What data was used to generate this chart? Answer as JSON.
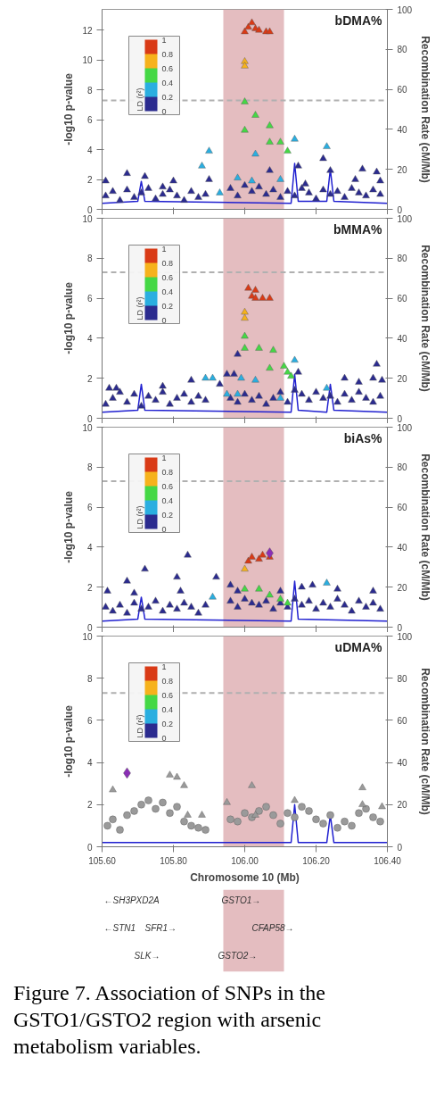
{
  "chart_data": [
    {
      "type": "scatter",
      "title": "bDMA%",
      "ylabel": "-log10 p-value",
      "y2label": "Recombination Rate (cM/Mb)",
      "clabel": "LD (r²)",
      "clim": [
        0,
        1
      ],
      "cticks": [
        0,
        0.2,
        0.4,
        0.6,
        0.8,
        1
      ],
      "xlim": [
        105.6,
        106.4
      ],
      "xticks": [
        {
          "value": 105.6,
          "label": null
        },
        {
          "value": 105.8,
          "label": null
        },
        {
          "value": 106.0,
          "label": null
        },
        {
          "value": 106.2,
          "label": null
        },
        {
          "value": 106.4,
          "label": null
        }
      ],
      "ylim": [
        0,
        13.4
      ],
      "yticks": [
        0,
        2,
        4,
        6,
        8,
        10,
        12
      ],
      "y2lim": [
        0,
        100
      ],
      "y2ticks": [
        0,
        20,
        40,
        60,
        80,
        100
      ],
      "tick_labels": "y",
      "ref_lines": [
        {
          "axis": "y",
          "value": 7.3,
          "color": "#b0b0b0",
          "line_style": "dashed"
        }
      ],
      "bands": [
        {
          "axis": "x",
          "from": 105.94,
          "to": 106.11,
          "color": "#dba7ab"
        }
      ],
      "series": [
        {
          "type": "scatter",
          "marker": "triangle",
          "color": "#2b2b8f",
          "x": [
            105.61,
            105.63,
            105.65,
            105.67,
            105.69,
            105.71,
            105.73,
            105.75,
            105.77,
            105.79,
            105.81,
            105.83,
            105.85,
            105.87,
            105.89,
            105.96,
            105.98,
            106.0,
            106.02,
            106.04,
            106.06,
            106.08,
            106.1,
            106.12,
            106.14,
            106.16,
            106.18,
            106.2,
            106.22,
            106.24,
            106.26,
            106.28,
            106.3,
            106.32,
            106.34,
            106.36,
            106.38
          ],
          "values": [
            0.9,
            1.2,
            0.6,
            1.3,
            0.8,
            1.1,
            1.4,
            0.7,
            1.0,
            1.3,
            0.9,
            0.6,
            1.2,
            0.8,
            1.0,
            1.4,
            0.9,
            1.6,
            1.2,
            1.5,
            1.0,
            1.3,
            0.8,
            1.2,
            0.9,
            1.4,
            1.1,
            0.7,
            1.3,
            1.0,
            1.2,
            0.8,
            1.4,
            1.1,
            0.9,
            1.3,
            1.0
          ]
        },
        {
          "type": "scatter",
          "marker": "triangle",
          "color": "#2b2b8f",
          "x": [
            105.61,
            105.67,
            105.72,
            105.77,
            105.8,
            105.9,
            106.15,
            106.17,
            106.22,
            106.24,
            106.31,
            106.33,
            106.37,
            106.38,
            106.07
          ],
          "values": [
            1.9,
            2.4,
            2.2,
            1.5,
            1.9,
            2.0,
            2.9,
            1.7,
            3.4,
            2.6,
            2.0,
            2.7,
            2.5,
            1.9,
            2.6
          ]
        },
        {
          "type": "scatter",
          "marker": "triangle",
          "color": "#2aaee0",
          "x": [
            106.14,
            106.23,
            105.9,
            106.03,
            105.88,
            106.1,
            106.02,
            105.98,
            105.93
          ],
          "values": [
            4.7,
            4.2,
            3.9,
            3.7,
            2.9,
            2.0,
            1.9,
            2.1,
            1.1
          ]
        },
        {
          "type": "scatter",
          "marker": "triangle",
          "color": "#45d845",
          "x": [
            106.0,
            106.03,
            106.0,
            106.07,
            106.07,
            106.1,
            106.12
          ],
          "values": [
            7.2,
            6.3,
            5.3,
            5.6,
            4.5,
            4.5,
            3.9
          ]
        },
        {
          "type": "scatter",
          "marker": "triangle",
          "color": "#f6b21c",
          "x": [
            106.0,
            106.0
          ],
          "values": [
            9.9,
            9.6
          ]
        },
        {
          "type": "scatter",
          "marker": "triangle",
          "color": "#d93a16",
          "x": [
            106.0,
            106.01,
            106.02,
            106.03,
            106.04,
            106.06,
            106.07
          ],
          "values": [
            11.9,
            12.2,
            12.5,
            12.1,
            12.0,
            11.9,
            11.9
          ]
        },
        {
          "type": "line",
          "axis": "y2",
          "color": "#2020d0",
          "x": [
            105.6,
            105.7,
            105.71,
            105.72,
            106.13,
            106.14,
            106.15,
            106.23,
            106.24,
            106.25,
            106.4
          ],
          "values": [
            3,
            4,
            14,
            4,
            3,
            23,
            4,
            4,
            20,
            4,
            3
          ]
        }
      ]
    },
    {
      "type": "scatter",
      "title": "bMMA%",
      "ylabel": "-log10 p-value",
      "y2label": "Recombination Rate (cM/Mb)",
      "clabel": "LD (r²)",
      "clim": [
        0,
        1
      ],
      "cticks": [
        0,
        0.2,
        0.4,
        0.6,
        0.8,
        1
      ],
      "xlim": [
        105.6,
        106.4
      ],
      "xticks": [
        {
          "value": 105.6,
          "label": null
        },
        {
          "value": 105.8,
          "label": null
        },
        {
          "value": 106.0,
          "label": null
        },
        {
          "value": 106.2,
          "label": null
        },
        {
          "value": 106.4,
          "label": null
        }
      ],
      "ylim": [
        0,
        10
      ],
      "yticks": [
        0,
        2,
        4,
        6,
        8,
        10
      ],
      "y2lim": [
        0,
        100
      ],
      "y2ticks": [
        0,
        20,
        40,
        60,
        80,
        100
      ],
      "tick_labels": "y",
      "ref_lines": [
        {
          "axis": "y",
          "value": 7.3,
          "color": "#b0b0b0",
          "line_style": "dashed"
        }
      ],
      "bands": [
        {
          "axis": "x",
          "from": 105.94,
          "to": 106.11,
          "color": "#dba7ab"
        }
      ],
      "series": [
        {
          "type": "scatter",
          "marker": "triangle",
          "color": "#2b2b8f",
          "x": [
            105.61,
            105.63,
            105.65,
            105.67,
            105.69,
            105.71,
            105.73,
            105.75,
            105.77,
            105.79,
            105.81,
            105.83,
            105.85,
            105.87,
            105.89,
            105.96,
            105.98,
            106.0,
            106.02,
            106.04,
            106.06,
            106.08,
            106.1,
            106.12,
            106.14,
            106.16,
            106.18,
            106.2,
            106.22,
            106.24,
            106.26,
            106.28,
            106.3,
            106.32,
            106.34,
            106.36,
            106.38
          ],
          "values": [
            0.7,
            1.0,
            1.3,
            0.8,
            1.2,
            0.6,
            1.1,
            0.9,
            1.3,
            0.7,
            1.0,
            1.2,
            0.8,
            1.1,
            0.9,
            1.0,
            0.8,
            1.2,
            0.9,
            1.1,
            0.7,
            1.0,
            1.3,
            0.8,
            1.4,
            1.2,
            0.9,
            1.3,
            1.0,
            1.1,
            0.8,
            1.2,
            0.9,
            1.3,
            1.0,
            0.8,
            1.1
          ]
        },
        {
          "type": "scatter",
          "marker": "triangle",
          "color": "#2b2b8f",
          "x": [
            105.98,
            105.95,
            105.97,
            106.37,
            106.36,
            106.385,
            105.62,
            105.64,
            105.77,
            105.85,
            106.15,
            106.28,
            106.32,
            105.93
          ],
          "values": [
            3.2,
            2.2,
            2.2,
            2.7,
            2.0,
            1.9,
            1.5,
            1.5,
            1.6,
            1.9,
            2.3,
            2.0,
            1.8,
            1.7
          ]
        },
        {
          "type": "scatter",
          "marker": "triangle",
          "color": "#2aaee0",
          "x": [
            105.89,
            105.91,
            106.14,
            105.99,
            105.95,
            105.98,
            106.03,
            106.23,
            106.1
          ],
          "values": [
            2.0,
            2.0,
            2.9,
            2.0,
            1.2,
            1.2,
            1.9,
            1.5,
            1.0
          ]
        },
        {
          "type": "scatter",
          "marker": "triangle",
          "color": "#45d845",
          "x": [
            106.0,
            106.0,
            106.04,
            106.08,
            106.07,
            106.11,
            106.12,
            106.13
          ],
          "values": [
            4.1,
            3.5,
            3.5,
            3.4,
            2.5,
            2.6,
            2.3,
            2.1
          ]
        },
        {
          "type": "scatter",
          "marker": "triangle",
          "color": "#f6b21c",
          "x": [
            106.0,
            106.0
          ],
          "values": [
            5.3,
            5.0
          ]
        },
        {
          "type": "scatter",
          "marker": "triangle",
          "color": "#d93a16",
          "x": [
            106.01,
            106.03,
            106.02,
            106.05,
            106.07,
            106.03
          ],
          "values": [
            6.5,
            6.4,
            6.1,
            6.0,
            6.0,
            6.0
          ]
        },
        {
          "type": "line",
          "axis": "y2",
          "color": "#2020d0",
          "x": [
            105.6,
            105.7,
            105.71,
            105.72,
            106.13,
            106.14,
            106.15,
            106.23,
            106.24,
            106.25,
            106.4
          ],
          "values": [
            3,
            4,
            17,
            4,
            3,
            22,
            4,
            3,
            17,
            4,
            3
          ]
        }
      ]
    },
    {
      "type": "scatter",
      "title": "biAs%",
      "ylabel": "-log10 p-value",
      "y2label": "Recombination Rate (cM/Mb)",
      "clabel": "LD (r²)",
      "clim": [
        0,
        1
      ],
      "cticks": [
        0,
        0.2,
        0.4,
        0.6,
        0.8,
        1
      ],
      "xlim": [
        105.6,
        106.4
      ],
      "xticks": [
        {
          "value": 105.6,
          "label": null
        },
        {
          "value": 105.8,
          "label": null
        },
        {
          "value": 106.0,
          "label": null
        },
        {
          "value": 106.2,
          "label": null
        },
        {
          "value": 106.4,
          "label": null
        }
      ],
      "ylim": [
        0,
        10
      ],
      "yticks": [
        0,
        2,
        4,
        6,
        8,
        10
      ],
      "y2lim": [
        0,
        100
      ],
      "y2ticks": [
        0,
        20,
        40,
        60,
        80,
        100
      ],
      "tick_labels": "y",
      "ref_lines": [
        {
          "axis": "y",
          "value": 7.3,
          "color": "#b0b0b0",
          "line_style": "dashed"
        }
      ],
      "bands": [
        {
          "axis": "x",
          "from": 105.94,
          "to": 106.11,
          "color": "#dba7ab"
        }
      ],
      "series": [
        {
          "type": "scatter",
          "marker": "triangle",
          "color": "#2b2b8f",
          "x": [
            105.61,
            105.63,
            105.65,
            105.67,
            105.69,
            105.71,
            105.73,
            105.75,
            105.77,
            105.79,
            105.81,
            105.83,
            105.85,
            105.87,
            105.89,
            105.96,
            105.98,
            106.0,
            106.02,
            106.04,
            106.06,
            106.08,
            106.1,
            106.12,
            106.14,
            106.16,
            106.18,
            106.2,
            106.22,
            106.24,
            106.26,
            106.28,
            106.3,
            106.32,
            106.34,
            106.36,
            106.38
          ],
          "values": [
            1.0,
            0.8,
            1.1,
            0.7,
            1.2,
            0.9,
            1.0,
            1.3,
            0.8,
            1.1,
            0.9,
            1.2,
            1.0,
            0.7,
            1.1,
            1.3,
            1.0,
            1.4,
            1.2,
            1.1,
            1.3,
            0.9,
            1.2,
            1.0,
            1.4,
            1.1,
            1.3,
            0.9,
            1.2,
            1.0,
            1.4,
            1.1,
            0.8,
            1.3,
            1.0,
            1.2,
            0.9
          ]
        },
        {
          "type": "scatter",
          "marker": "triangle",
          "color": "#2b2b8f",
          "x": [
            105.84,
            105.72,
            105.81,
            105.92,
            105.67,
            105.615,
            105.69,
            105.82,
            105.96,
            105.98,
            106.1,
            106.19,
            106.26,
            106.36,
            106.16
          ],
          "values": [
            3.6,
            2.9,
            2.5,
            2.5,
            2.3,
            1.8,
            1.7,
            1.8,
            2.1,
            1.8,
            1.8,
            2.1,
            1.9,
            1.8,
            2.0
          ]
        },
        {
          "type": "scatter",
          "marker": "triangle",
          "color": "#2aaee0",
          "x": [
            105.91,
            106.23
          ],
          "values": [
            1.5,
            2.2
          ]
        },
        {
          "type": "scatter",
          "marker": "triangle",
          "color": "#45d845",
          "x": [
            106.0,
            106.04,
            106.07,
            106.1,
            106.12
          ],
          "values": [
            1.9,
            1.9,
            1.6,
            1.4,
            1.2
          ]
        },
        {
          "type": "scatter",
          "marker": "triangle",
          "color": "#f6b21c",
          "x": [
            106.0
          ],
          "values": [
            2.9
          ]
        },
        {
          "type": "scatter",
          "marker": "triangle",
          "color": "#d93a16",
          "x": [
            106.01,
            106.02,
            106.04,
            106.05,
            106.07
          ],
          "values": [
            3.3,
            3.5,
            3.4,
            3.6,
            3.5
          ]
        },
        {
          "type": "scatter",
          "marker": "diamond",
          "color": "#8a2fb5",
          "x": [
            106.07
          ],
          "values": [
            3.7
          ]
        },
        {
          "type": "line",
          "axis": "y2",
          "color": "#2020d0",
          "x": [
            105.6,
            105.7,
            105.71,
            105.72,
            106.13,
            106.14,
            106.15,
            106.4
          ],
          "values": [
            3,
            4,
            15,
            4,
            3,
            23,
            4,
            3
          ]
        }
      ]
    },
    {
      "type": "scatter",
      "title": "uDMA%",
      "ylabel": "-log10 p-value",
      "y2label": "Recombination Rate (cM/Mb)",
      "xlabel": "Chromosome 10 (Mb)",
      "clabel": "LD (r²)",
      "clim": [
        0,
        1
      ],
      "cticks": [
        0,
        0.2,
        0.4,
        0.6,
        0.8,
        1
      ],
      "xlim": [
        105.6,
        106.4
      ],
      "xticks": [
        {
          "value": 105.6,
          "label": "105.60"
        },
        {
          "value": 105.8,
          "label": "105.80"
        },
        {
          "value": 106.0,
          "label": "106.00"
        },
        {
          "value": 106.2,
          "label": "106.20"
        },
        {
          "value": 106.4,
          "label": "106.40"
        }
      ],
      "ylim": [
        0,
        10
      ],
      "yticks": [
        0,
        2,
        4,
        6,
        8,
        10
      ],
      "y2lim": [
        0,
        100
      ],
      "y2ticks": [
        0,
        20,
        40,
        60,
        80,
        100
      ],
      "ref_lines": [
        {
          "axis": "y",
          "value": 7.3,
          "color": "#b0b0b0",
          "line_style": "dashed"
        }
      ],
      "bands": [
        {
          "axis": "x",
          "from": 105.94,
          "to": 106.11,
          "color": "#dba7ab"
        }
      ],
      "annotations": [
        "Figure 7. Association of SNPs in the GSTO1/GSTO2 region with arsenic metabolism variables."
      ],
      "series": [
        {
          "type": "scatter",
          "marker": "circle",
          "color": "#9a9a9a",
          "x": [
            105.615,
            105.63,
            105.65,
            105.67,
            105.69,
            105.71,
            105.73,
            105.75,
            105.77,
            105.79,
            105.81,
            105.83,
            105.85,
            105.87,
            105.89,
            105.96,
            105.98,
            106.0,
            106.02,
            106.04,
            106.06,
            106.08,
            106.1,
            106.12,
            106.14,
            106.16,
            106.18,
            106.2,
            106.22,
            106.24,
            106.26,
            106.28,
            106.3,
            106.32,
            106.34,
            106.36,
            106.38
          ],
          "values": [
            1.0,
            1.3,
            0.8,
            1.5,
            1.7,
            2.0,
            2.2,
            1.8,
            2.1,
            1.6,
            1.9,
            1.2,
            1.0,
            0.9,
            0.8,
            1.3,
            1.2,
            1.6,
            1.4,
            1.7,
            1.9,
            1.5,
            1.1,
            1.6,
            1.4,
            1.9,
            1.7,
            1.3,
            1.1,
            1.5,
            0.9,
            1.2,
            1.0,
            1.6,
            1.8,
            1.4,
            1.2
          ]
        },
        {
          "type": "scatter",
          "marker": "triangle",
          "color": "#9a9a9a",
          "x": [
            105.63,
            105.79,
            105.81,
            105.83,
            106.02,
            105.95,
            106.33,
            106.33,
            106.385,
            106.14,
            105.84,
            106.03,
            105.88
          ],
          "values": [
            2.7,
            3.4,
            3.3,
            2.9,
            2.9,
            2.1,
            2.8,
            2.0,
            1.9,
            2.2,
            1.5,
            1.5,
            1.5
          ]
        },
        {
          "type": "scatter",
          "marker": "diamond",
          "color": "#8a2fb5",
          "x": [
            105.67
          ],
          "values": [
            3.5
          ]
        },
        {
          "type": "line",
          "axis": "y2",
          "color": "#2020d0",
          "x": [
            105.6,
            106.13,
            106.14,
            106.15,
            106.23,
            106.24,
            106.25,
            106.4
          ],
          "values": [
            2,
            2,
            20,
            2,
            2,
            15,
            2,
            2
          ]
        }
      ]
    },
    {
      "type": "other",
      "annotations": [
        "←SH3PXD2A",
        "GSTO1→",
        "←STN1",
        "SFR1→",
        "CFAP58→",
        "SLK→",
        "GSTO2→"
      ]
    }
  ]
}
